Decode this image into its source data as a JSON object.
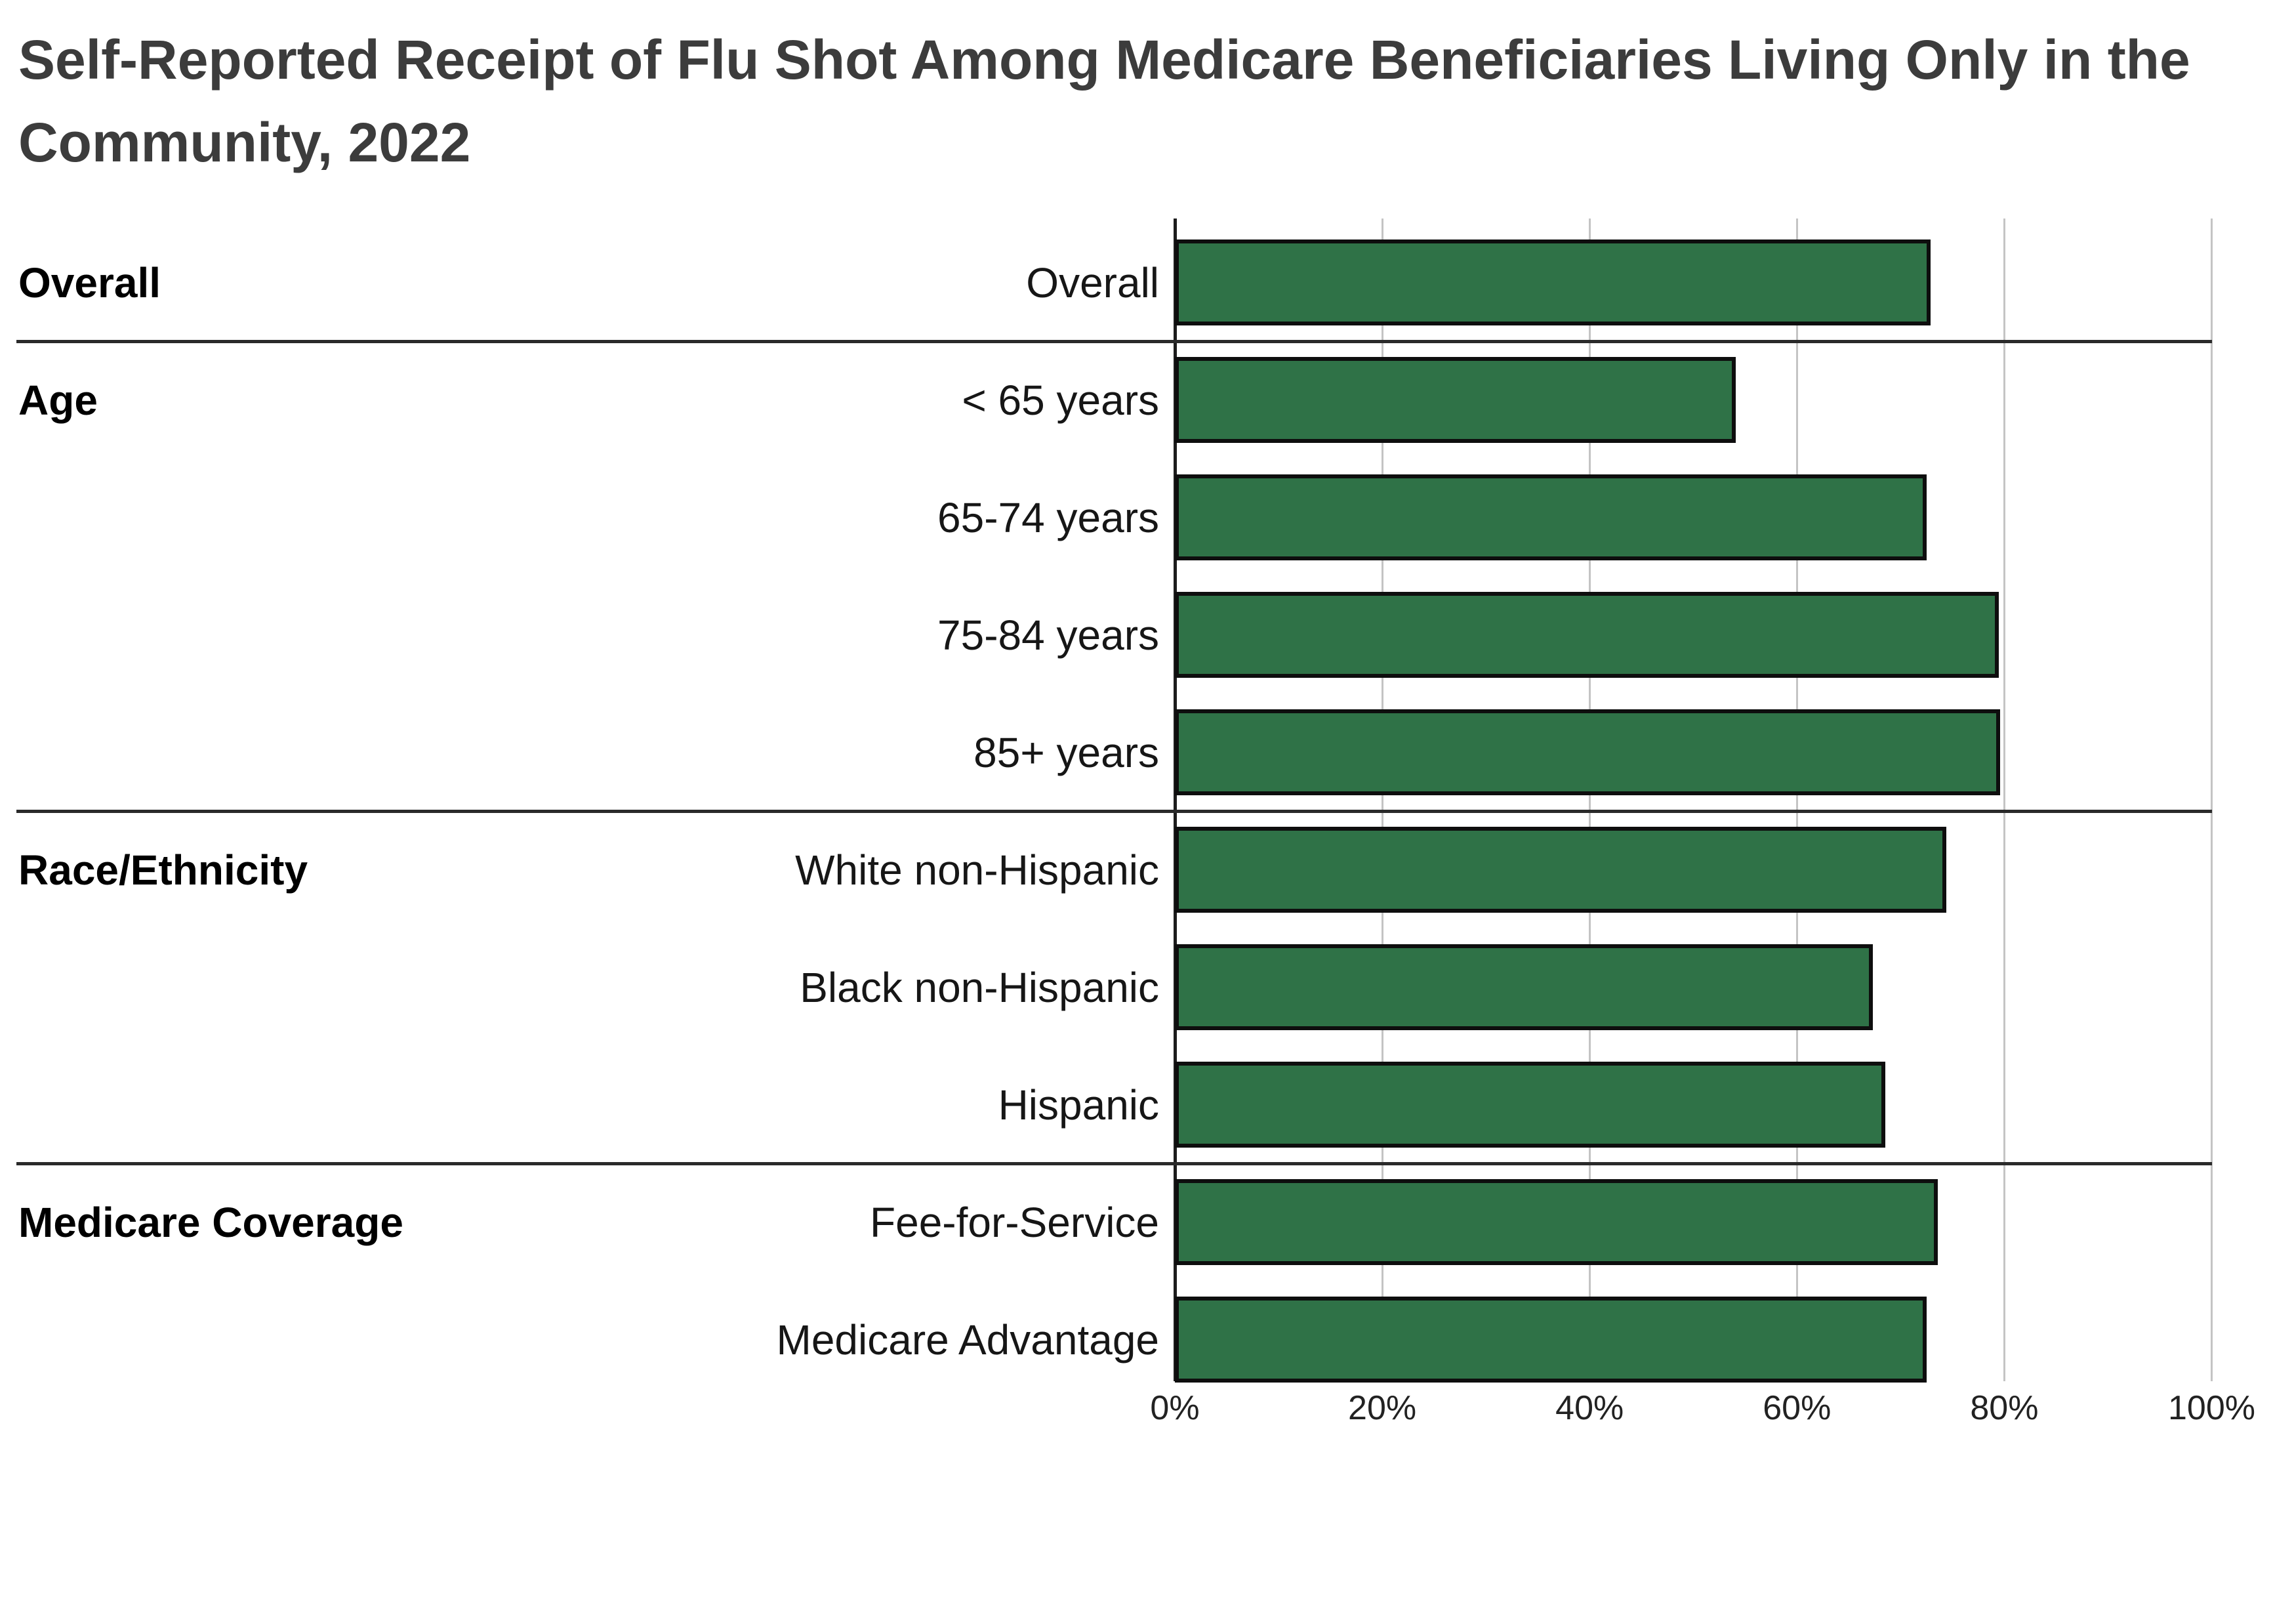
{
  "title": "Self-Reported Receipt of Flu Shot Among Medicare Beneficiaries Living Only in the Community, 2022",
  "chart_data": {
    "type": "bar",
    "orientation": "horizontal",
    "title": "Self-Reported Receipt of Flu Shot Among Medicare Beneficiaries Living Only in the Community, 2022",
    "xlabel": "",
    "ylabel": "",
    "value_unit": "percent",
    "xlim": [
      0,
      100
    ],
    "x_ticks": [
      "0%",
      "20%",
      "40%",
      "60%",
      "80%",
      "100%"
    ],
    "x_tick_values": [
      0,
      20,
      40,
      60,
      80,
      100
    ],
    "grid": true,
    "legend": "none",
    "bar_color": "#2F7247",
    "bar_border_color": "#0e0e0e",
    "groups": [
      {
        "label": "Overall",
        "items": [
          {
            "label": "Overall",
            "value": 72.9
          }
        ]
      },
      {
        "label": "Age",
        "items": [
          {
            "label": "< 65 years",
            "value": 54.1
          },
          {
            "label": "65-74 years",
            "value": 72.5
          },
          {
            "label": "75-84 years",
            "value": 79.5
          },
          {
            "label": "85+ years",
            "value": 79.6
          }
        ]
      },
      {
        "label": "Race/Ethnicity",
        "items": [
          {
            "label": "White non-Hispanic",
            "value": 74.4
          },
          {
            "label": "Black non-Hispanic",
            "value": 67.3
          },
          {
            "label": "Hispanic",
            "value": 68.5
          }
        ]
      },
      {
        "label": "Medicare Coverage",
        "items": [
          {
            "label": "Fee-for-Service",
            "value": 73.6
          },
          {
            "label": "Medicare Advantage",
            "value": 72.5
          }
        ]
      }
    ]
  }
}
